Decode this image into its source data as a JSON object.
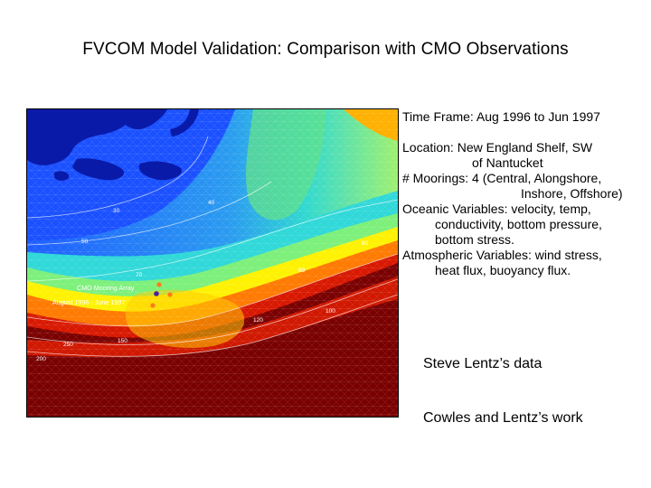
{
  "title": "FVCOM Model Validation: Comparison with CMO Observations",
  "map": {
    "array_label": "CMO Mooring Array",
    "period_label": "August 1996 - June 1997",
    "contour_labels": [
      "30",
      "40",
      "50",
      "60",
      "70",
      "80",
      "100",
      "120",
      "150",
      "200",
      "250"
    ],
    "colors": {
      "land": "#0a1aa8",
      "shallow": "#1e6bff",
      "mid": "#20d0e0",
      "green": "#7cf07a",
      "yellow": "#fff200",
      "orange": "#ff7a00",
      "red": "#d81800",
      "deep": "#7a0000",
      "mooring_central": "#4b1fa0",
      "mooring_other": "#ff7a1a"
    }
  },
  "info": {
    "time_frame": "Time Frame: Aug 1996 to Jun 1997",
    "location_1": "Location: New England Shelf, SW",
    "location_2": "of Nantucket",
    "moorings_1": "# Moorings: 4 (Central, Alongshore,",
    "moorings_2": "Inshore, Offshore)",
    "oceanic_1": "Oceanic Variables: velocity, temp,",
    "oceanic_2": "conductivity, bottom pressure,",
    "oceanic_3": "bottom stress.",
    "atmos_1": "Atmospheric Variables: wind stress,",
    "atmos_2": "heat flux, buoyancy flux."
  },
  "credits": {
    "data": "Steve Lentz’s data",
    "work": "Cowles and Lentz’s work"
  }
}
